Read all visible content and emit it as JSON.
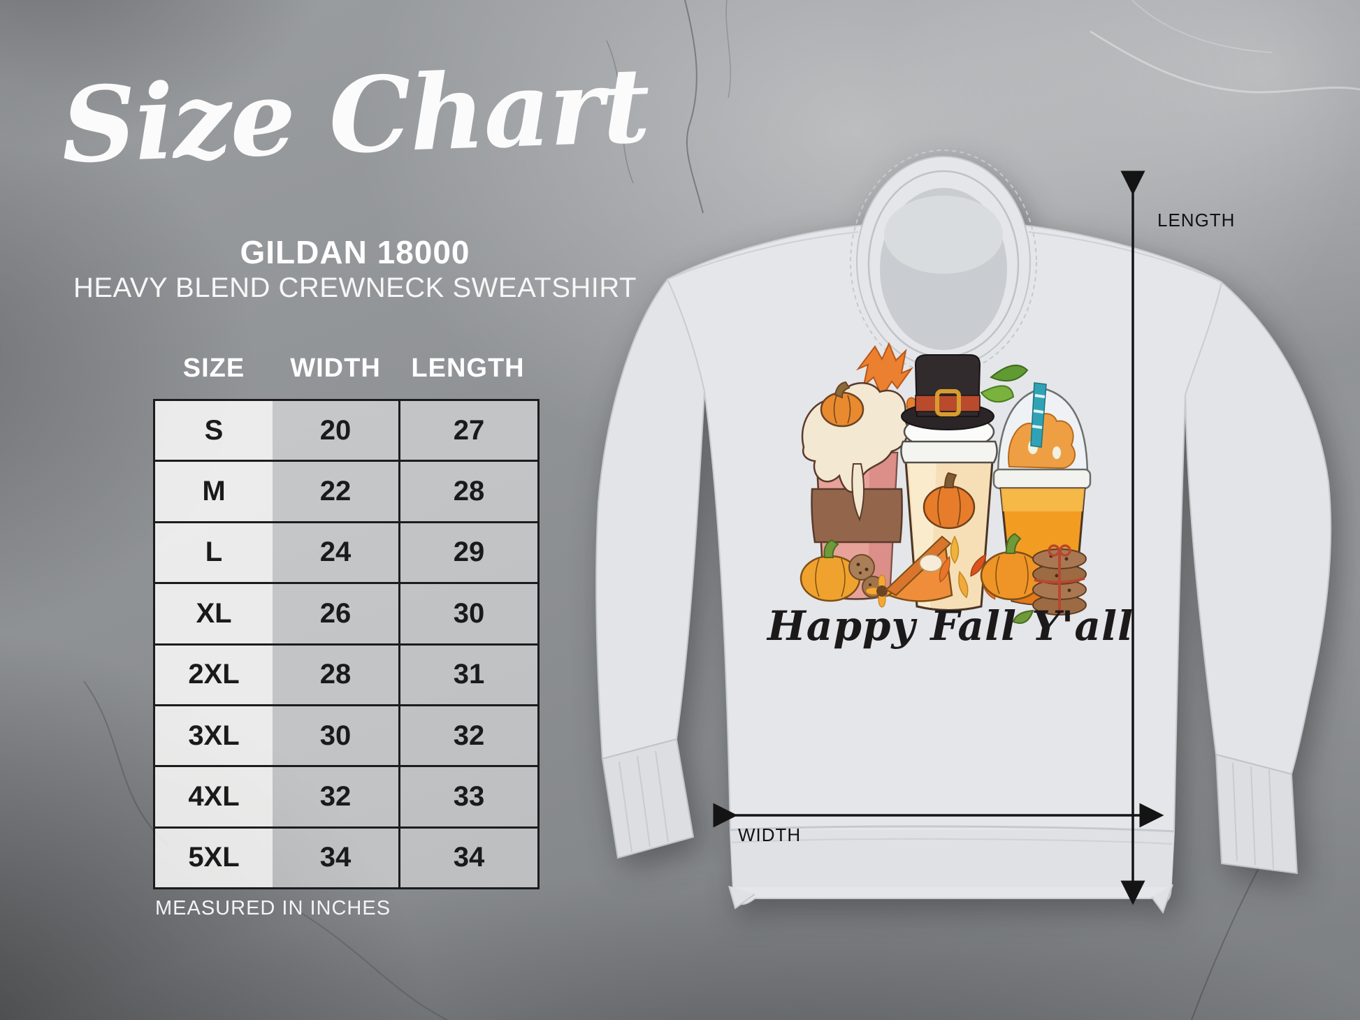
{
  "page": {
    "title": "Size Chart",
    "product_line1": "GILDAN 18000",
    "product_line2": "HEAVY BLEND CREWNECK SWEATSHIRT",
    "footnote": "MEASURED IN INCHES"
  },
  "table": {
    "columns": [
      "SIZE",
      "WIDTH",
      "LENGTH"
    ],
    "rows": [
      [
        "S",
        "20",
        "27"
      ],
      [
        "M",
        "22",
        "28"
      ],
      [
        "L",
        "24",
        "29"
      ],
      [
        "XL",
        "26",
        "30"
      ],
      [
        "2XL",
        "28",
        "31"
      ],
      [
        "3XL",
        "30",
        "32"
      ],
      [
        "4XL",
        "32",
        "33"
      ],
      [
        "5XL",
        "34",
        "34"
      ]
    ]
  },
  "measurements": {
    "length_label": "LENGTH",
    "width_label": "WIDTH"
  },
  "design": {
    "text": "Happy Fall Y'all"
  },
  "chart_data": {
    "type": "table",
    "title": "Gildan 18000 Heavy Blend Crewneck Sweatshirt size chart (inches)",
    "columns": [
      "SIZE",
      "WIDTH",
      "LENGTH"
    ],
    "rows": [
      [
        "S",
        20,
        27
      ],
      [
        "M",
        22,
        28
      ],
      [
        "L",
        24,
        29
      ],
      [
        "XL",
        26,
        30
      ],
      [
        "2XL",
        28,
        31
      ],
      [
        "3XL",
        30,
        32
      ],
      [
        "4XL",
        32,
        33
      ],
      [
        "5XL",
        34,
        34
      ]
    ]
  },
  "colors": {
    "background_gray": "#8e9194",
    "table_border": "#1c1c1c",
    "cell_text": "#1a1a1a",
    "heading_white": "#ffffff",
    "arrow_black": "#141414",
    "sweatshirt_gray": "#e4e6e9",
    "pumpkin_orange": "#ef9426",
    "hat_black": "#2b2527",
    "hat_band_red": "#b94a2c",
    "buckle_gold": "#d79c2f",
    "cup_pink": "#e7a29a",
    "sleeve_brown": "#93664b",
    "cream": "#f3e8d2",
    "straw_teal": "#2fa3b5",
    "leaf_green": "#79b23c"
  }
}
